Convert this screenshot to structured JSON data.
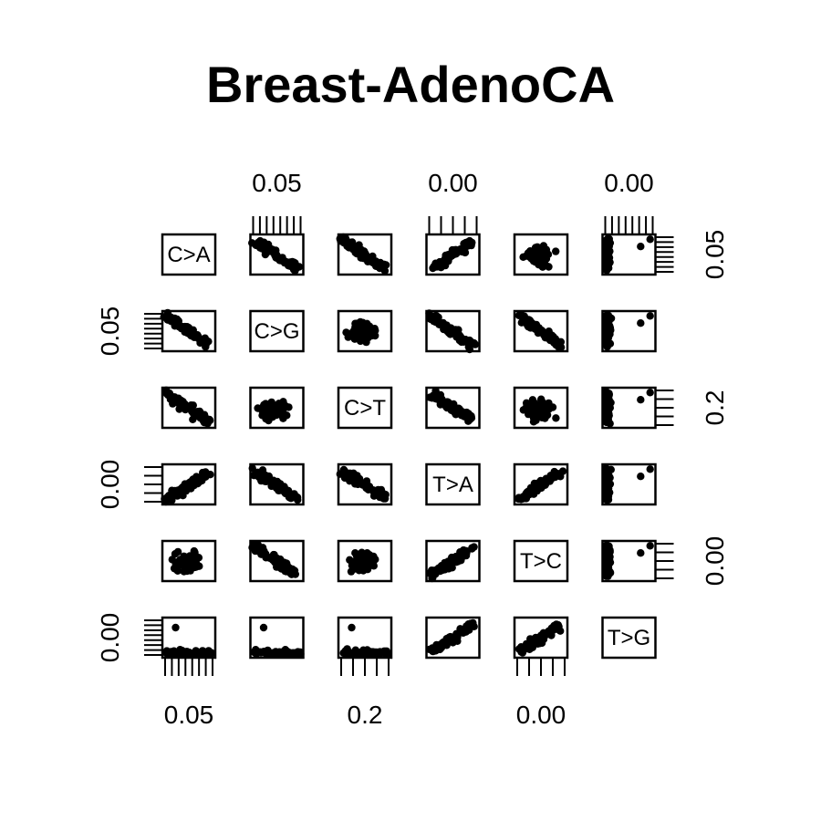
{
  "chart_data": {
    "type": "scatter-matrix",
    "title": "Breast-AdenoCA",
    "variables": [
      "C>A",
      "C>G",
      "C>T",
      "T>A",
      "T>C",
      "T>G"
    ],
    "axis_labels": {
      "top": [
        {
          "column": 1,
          "text": "0.05"
        },
        {
          "column": 3,
          "text": "0.00"
        },
        {
          "column": 5,
          "text": "0.00"
        }
      ],
      "bottom": [
        {
          "column": 0,
          "text": "0.05"
        },
        {
          "column": 2,
          "text": "0.2"
        },
        {
          "column": 4,
          "text": "0.00"
        }
      ],
      "left": [
        {
          "row": 1,
          "text": "0.05"
        },
        {
          "row": 3,
          "text": "0.00"
        },
        {
          "row": 5,
          "text": "0.00"
        }
      ],
      "right": [
        {
          "row": 0,
          "text": "0.05"
        },
        {
          "row": 2,
          "text": "0.2"
        },
        {
          "row": 4,
          "text": "0.00"
        }
      ]
    },
    "tick_counts": {
      "top": [
        0,
        8,
        0,
        5,
        0,
        8
      ],
      "bottom": [
        8,
        0,
        5,
        0,
        5,
        0
      ],
      "left": [
        0,
        8,
        0,
        5,
        0,
        8
      ],
      "right": [
        8,
        0,
        5,
        0,
        5,
        0
      ]
    },
    "panel_shapes": [
      [
        null,
        "neg",
        "neg",
        "pos",
        "cluster",
        "vert"
      ],
      [
        "neg",
        null,
        "cluster",
        "neg",
        "neg",
        "vert"
      ],
      [
        "neg",
        "cluster",
        null,
        "neg",
        "cluster",
        "vert"
      ],
      [
        "pos",
        "neg",
        "neg",
        null,
        "pos",
        "vert"
      ],
      [
        "cluster",
        "neg",
        "cluster",
        "pos",
        null,
        "vert"
      ],
      [
        "flat",
        "flat",
        "flat",
        "pos",
        "pos",
        null
      ]
    ]
  }
}
